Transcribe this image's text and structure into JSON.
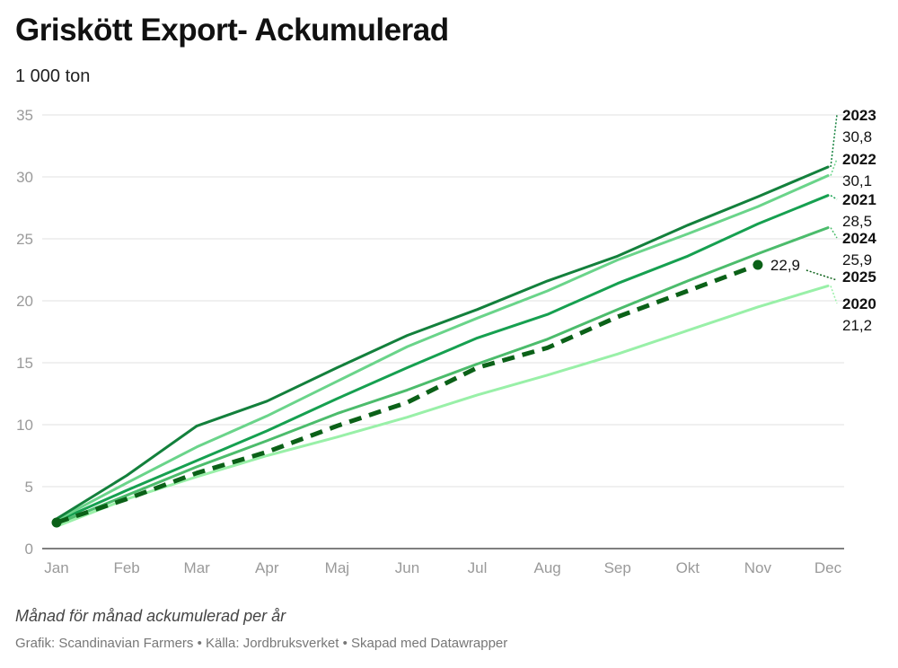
{
  "title": "Griskött Export- Ackumulerad",
  "subtitle": "1 000 ton",
  "notes": "Månad för månad ackumulerad per år",
  "byline": {
    "graphic": "Grafik: Scandinavian Farmers",
    "source": "Källa: Jordbruksverket",
    "tool": "Skapad med Datawrapper",
    "separator": " • "
  },
  "chart_data": {
    "type": "line",
    "title": "Griskött Export- Ackumulerad",
    "ylabel": "1 000 ton",
    "xlabel": "",
    "categories": [
      "Jan",
      "Feb",
      "Mar",
      "Apr",
      "Maj",
      "Jun",
      "Jul",
      "Aug",
      "Sep",
      "Okt",
      "Nov",
      "Dec"
    ],
    "ylim": [
      0,
      35
    ],
    "yticks": [
      0,
      5,
      10,
      15,
      20,
      25,
      30,
      35
    ],
    "grid": true,
    "series": [
      {
        "name": "2020",
        "color": "#99f0a8",
        "dashed": false,
        "end_label": "21,2",
        "values": [
          1.8,
          4.0,
          5.8,
          7.5,
          9.0,
          10.6,
          12.4,
          14.0,
          15.7,
          17.6,
          19.5,
          21.2
        ]
      },
      {
        "name": "2024",
        "color": "#4cbc6c",
        "dashed": false,
        "end_label": "25,9",
        "values": [
          2.0,
          4.3,
          6.6,
          8.7,
          10.9,
          12.8,
          14.9,
          16.9,
          19.3,
          21.6,
          23.8,
          25.9
        ]
      },
      {
        "name": "2021",
        "color": "#16a050",
        "dashed": false,
        "end_label": "28,5",
        "values": [
          2.2,
          4.7,
          7.1,
          9.5,
          12.1,
          14.6,
          17.0,
          18.9,
          21.4,
          23.6,
          26.2,
          28.5
        ]
      },
      {
        "name": "2022",
        "color": "#6ad48a",
        "dashed": false,
        "end_label": "30,1",
        "values": [
          2.3,
          5.3,
          8.2,
          10.7,
          13.5,
          16.3,
          18.6,
          20.8,
          23.3,
          25.4,
          27.6,
          30.1
        ]
      },
      {
        "name": "2023",
        "color": "#13803c",
        "dashed": false,
        "end_label": "30,8",
        "values": [
          2.4,
          5.9,
          9.9,
          11.9,
          14.6,
          17.2,
          19.3,
          21.6,
          23.6,
          26.1,
          28.4,
          30.8
        ]
      },
      {
        "name": "2025",
        "color": "#0b6118",
        "dashed": true,
        "end_label": "22,9",
        "values": [
          2.1,
          4.0,
          6.1,
          7.8,
          9.9,
          11.8,
          14.6,
          16.2,
          18.7,
          20.8,
          22.9,
          null
        ]
      }
    ]
  }
}
